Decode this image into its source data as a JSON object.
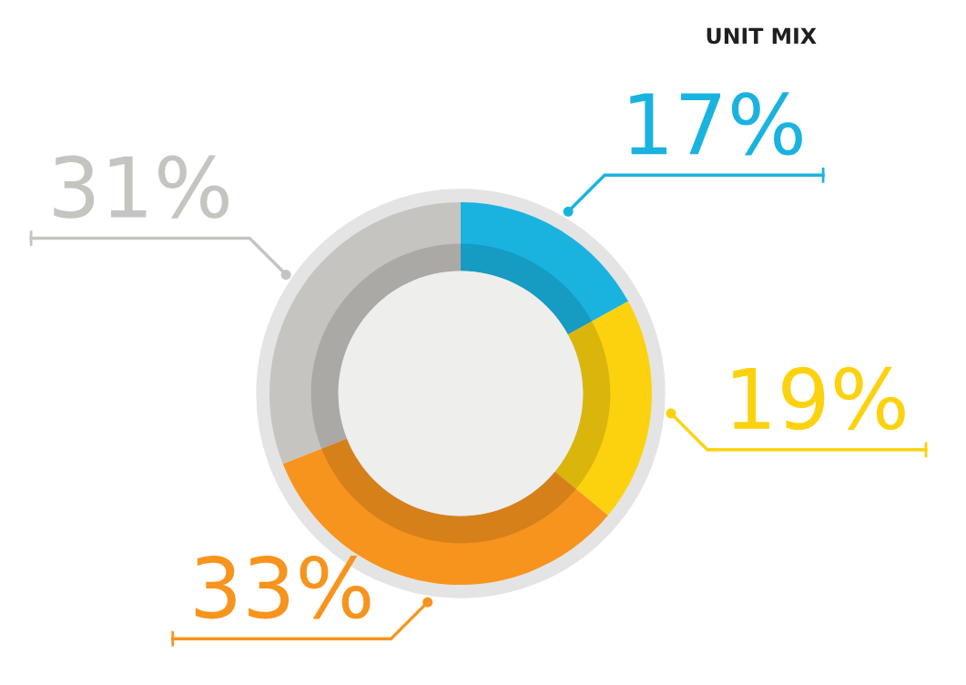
{
  "chart_data": {
    "type": "donut",
    "title": "UNIT MIX",
    "categories": [
      null,
      null,
      null,
      null
    ],
    "values": [
      17,
      19,
      33,
      31
    ],
    "colors": [
      "#1ab3e0",
      "#fcd20f",
      "#f7941d",
      "#c5c4c0"
    ],
    "value_labels": [
      "17%",
      "19%",
      "33%",
      "31%"
    ]
  }
}
